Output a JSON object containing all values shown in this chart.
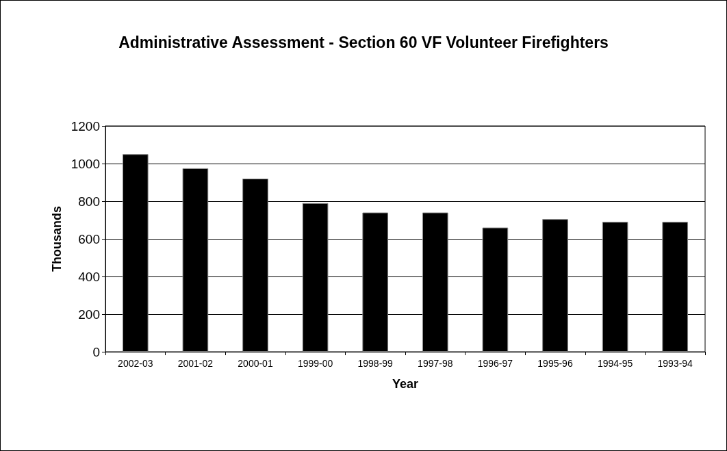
{
  "chart_data": {
    "type": "bar",
    "title": "Administrative Assessment - Section 60 VF Volunteer Firefighters",
    "xlabel": "Year",
    "ylabel": "Thousands",
    "categories": [
      "2002-03",
      "2001-02",
      "2000-01",
      "1999-00",
      "1998-99",
      "1997-98",
      "1996-97",
      "1995-96",
      "1994-95",
      "1993-94"
    ],
    "values": [
      1050,
      975,
      920,
      790,
      740,
      740,
      660,
      705,
      690,
      690
    ],
    "color": "#000000",
    "ylim": [
      0,
      1200
    ],
    "yticks": [
      0,
      200,
      400,
      600,
      800,
      1000,
      1200
    ],
    "grid": "y"
  }
}
